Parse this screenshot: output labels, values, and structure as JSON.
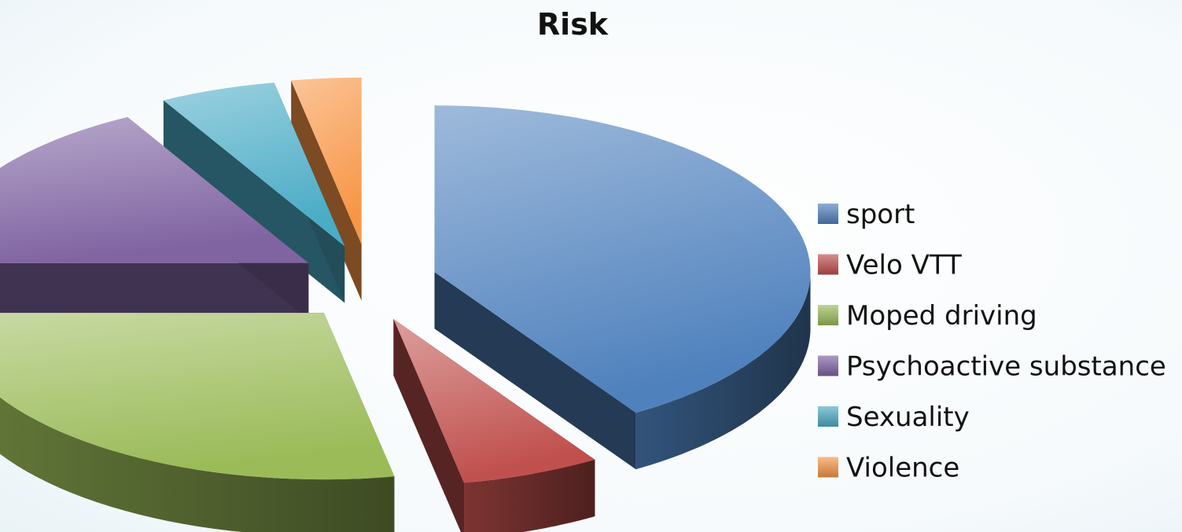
{
  "chart_data": {
    "type": "pie",
    "style": "3d-exploded",
    "title": "Risk",
    "legend_position": "right",
    "slices": [
      {
        "label": "sport",
        "value": 41,
        "color": "#4f81bd"
      },
      {
        "label": "Velo VTT",
        "value": 6,
        "color": "#c0504d"
      },
      {
        "label": "Moped driving",
        "value": 28,
        "color": "#9bbb59"
      },
      {
        "label": "Psychoactive substance",
        "value": 17,
        "color": "#8064a2"
      },
      {
        "label": "Sexuality",
        "value": 5,
        "color": "#4bacc6"
      },
      {
        "label": "Violence",
        "value": 3,
        "color": "#f79646"
      }
    ]
  }
}
